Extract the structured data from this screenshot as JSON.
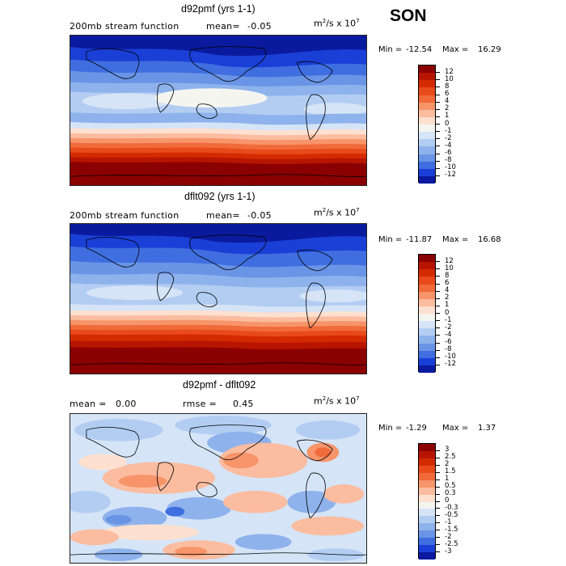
{
  "season": "SON",
  "panels": [
    {
      "title": "d92pmf (yrs 1-1)",
      "subtitle": "200mb stream function",
      "mean_label": "mean=",
      "mean_value": "-0.05",
      "units_base": "m",
      "units_exp1": "2",
      "units_mid": "/s x 10",
      "units_exp2": "7",
      "min_label": "Min =",
      "min_value": "-12.54",
      "max_label": "Max =",
      "max_value": "16.29",
      "colorbar": {
        "levels": [
          "12",
          "10",
          "8",
          "6",
          "4",
          "2",
          "1",
          "0",
          "-1",
          "-2",
          "-4",
          "-6",
          "-8",
          "-10",
          "-12"
        ],
        "colors": [
          "#8b0000",
          "#b71500",
          "#d42a00",
          "#e84a1a",
          "#f06a3a",
          "#f7946a",
          "#fbbca0",
          "#fde0cf",
          "#f5f5f0",
          "#d6e4f7",
          "#b3cdf2",
          "#8eb2ec",
          "#6a94e6",
          "#3f6ee0",
          "#1a3fd6",
          "#0a1a9e"
        ]
      }
    },
    {
      "title": "dflt092 (yrs 1-1)",
      "subtitle": "200mb stream function",
      "mean_label": "mean=",
      "mean_value": "-0.05",
      "units_base": "m",
      "units_exp1": "2",
      "units_mid": "/s x 10",
      "units_exp2": "7",
      "min_label": "Min =",
      "min_value": "-11.87",
      "max_label": "Max =",
      "max_value": "16.68",
      "colorbar": {
        "levels": [
          "12",
          "10",
          "8",
          "6",
          "4",
          "2",
          "1",
          "0",
          "-1",
          "-2",
          "-4",
          "-6",
          "-8",
          "-10",
          "-12"
        ],
        "colors": [
          "#8b0000",
          "#b71500",
          "#d42a00",
          "#e84a1a",
          "#f06a3a",
          "#f7946a",
          "#fbbca0",
          "#fde0cf",
          "#f5f5f0",
          "#d6e4f7",
          "#b3cdf2",
          "#8eb2ec",
          "#6a94e6",
          "#3f6ee0",
          "#1a3fd6",
          "#0a1a9e"
        ]
      }
    },
    {
      "title": "d92pmf - dflt092",
      "mean_label": "mean =",
      "mean_value": "0.00",
      "rmse_label": "rmse =",
      "rmse_value": "0.45",
      "units_base": "m",
      "units_exp1": "2",
      "units_mid": "/s x 10",
      "units_exp2": "7",
      "min_label": "Min =",
      "min_value": "-1.29",
      "max_label": "Max =",
      "max_value": "1.37",
      "colorbar": {
        "levels": [
          "3",
          "2.5",
          "2",
          "1.5",
          "1",
          "0.5",
          "0.3",
          "0",
          "-0.3",
          "-0.5",
          "-1",
          "-1.5",
          "-2",
          "-2.5",
          "-3"
        ],
        "colors": [
          "#8b0000",
          "#b71500",
          "#d42a00",
          "#e84a1a",
          "#f06a3a",
          "#f7946a",
          "#fbbca0",
          "#fde0cf",
          "#f5f5f0",
          "#d6e4f7",
          "#b3cdf2",
          "#8eb2ec",
          "#6a94e6",
          "#3f6ee0",
          "#1a3fd6",
          "#0a1a9e"
        ]
      }
    }
  ]
}
